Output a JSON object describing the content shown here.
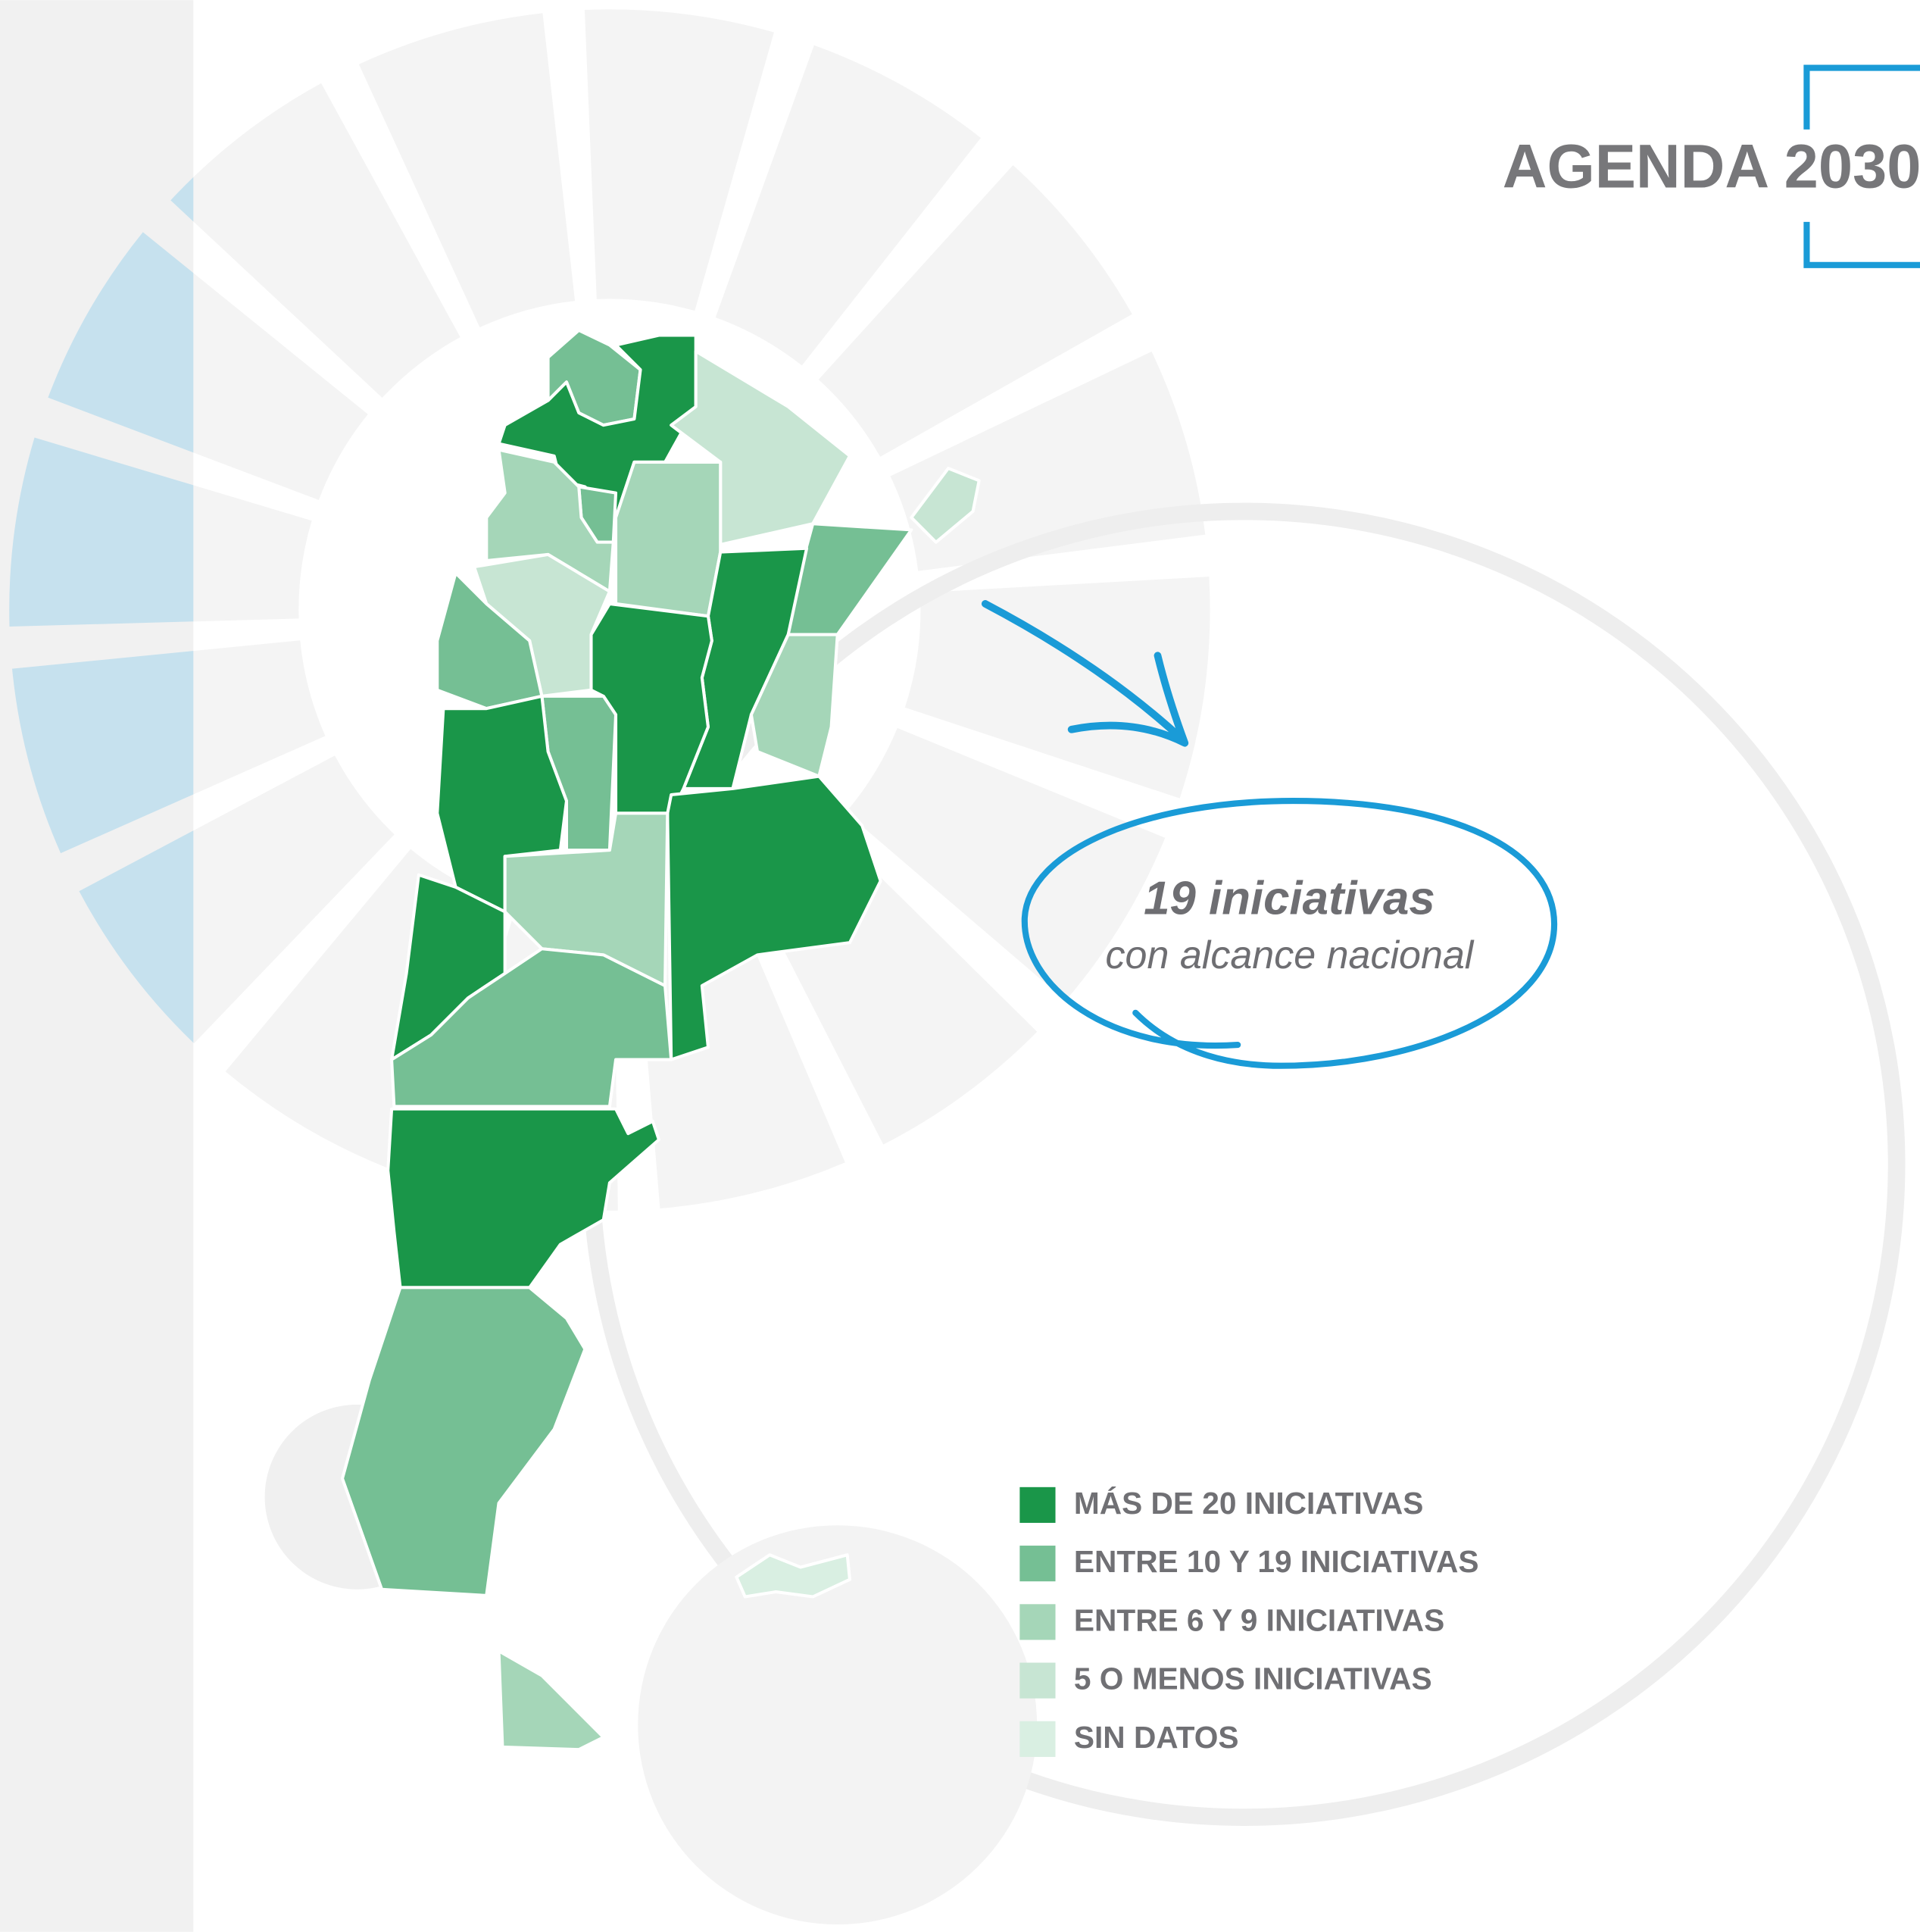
{
  "title": "AGENDA 2030",
  "callout": {
    "headline": "19 iniciativas",
    "text": "con alcance nacional"
  },
  "legend": [
    {
      "label": "MÁS DE 20 INICIATIVAS",
      "color": "#1a9649"
    },
    {
      "label": "ENTRE 10 Y 19 INICIATIVAS",
      "color": "#75bf94"
    },
    {
      "label": "ENTRE 6 Y 9 INICIATIVAS",
      "color": "#a5d6b8"
    },
    {
      "label": "5 O MENOS INICIATIVAS",
      "color": "#c7e5d3"
    },
    {
      "label": "SIN DATOS",
      "color": "#d9efe2"
    }
  ]
}
